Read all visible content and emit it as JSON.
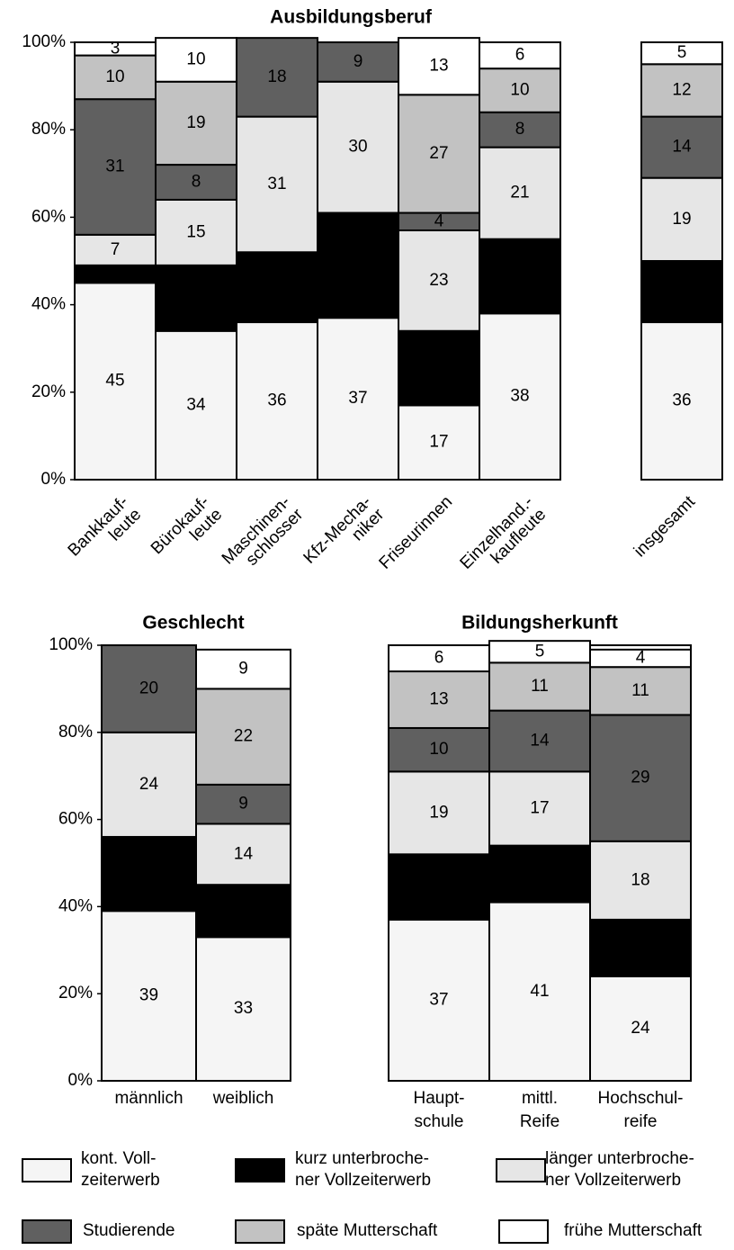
{
  "chart_data": [
    {
      "type": "bar",
      "stacked": true,
      "title": "Ausbildungsberuf",
      "categories": [
        "Bankkauf-\nleute",
        "Bürokauf-\nleute",
        "Maschinen-\nschlosser",
        "Kfz-Mecha-\nniker",
        "Friseurinnen",
        "Einzelhand.-\nkaufleute",
        "insgesamt"
      ],
      "ylim": [
        0,
        100
      ],
      "yticks": [
        {
          "value": 0,
          "label": "0%"
        },
        {
          "value": 20,
          "label": "20%"
        },
        {
          "value": 40,
          "label": "40%"
        },
        {
          "value": 60,
          "label": "60%"
        },
        {
          "value": 80,
          "label": "80%"
        },
        {
          "value": 100,
          "label": "100%"
        }
      ],
      "series": [
        {
          "name": "kont. Voll-\nzeiterwerb",
          "color": "#f5f5f5",
          "values": [
            45,
            34,
            36,
            37,
            17,
            38,
            36
          ]
        },
        {
          "name": "kurz unterbroche-\nner Vollzeiterwerb",
          "color": "#000000",
          "values": [
            4,
            15,
            16,
            24,
            17,
            17,
            14
          ]
        },
        {
          "name": "länger unterbroche-\nner Vollzeiterwerb",
          "color": "#e6e6e6",
          "values": [
            7,
            15,
            31,
            30,
            23,
            21,
            19
          ]
        },
        {
          "name": "Studierende",
          "color": "#606060",
          "values": [
            31,
            8,
            18,
            9,
            4,
            8,
            14
          ]
        },
        {
          "name": "späte Mutterschaft",
          "color": "#c2c2c2",
          "values": [
            10,
            19,
            0,
            0,
            27,
            10,
            12
          ]
        },
        {
          "name": "frühe Mutterschaft",
          "color": "#ffffff",
          "values": [
            3,
            10,
            0,
            0,
            13,
            6,
            5
          ]
        }
      ]
    },
    {
      "type": "bar",
      "stacked": true,
      "title": "Geschlecht",
      "categories": [
        "männlich",
        "weiblich"
      ],
      "ylim": [
        0,
        100
      ],
      "yticks": [
        {
          "value": 0,
          "label": "0%"
        },
        {
          "value": 20,
          "label": "20%"
        },
        {
          "value": 40,
          "label": "40%"
        },
        {
          "value": 60,
          "label": "60%"
        },
        {
          "value": 80,
          "label": "80%"
        },
        {
          "value": 100,
          "label": "100%"
        }
      ],
      "series": [
        {
          "values": [
            39,
            33
          ]
        },
        {
          "values": [
            17,
            12
          ]
        },
        {
          "values": [
            24,
            14
          ]
        },
        {
          "values": [
            20,
            9
          ]
        },
        {
          "values": [
            0,
            22
          ]
        },
        {
          "values": [
            0,
            9
          ]
        }
      ]
    },
    {
      "type": "bar",
      "stacked": true,
      "title": "Bildungsherkunft",
      "categories": [
        "Haupt-\nschule",
        "mittl.\nReife",
        "Hochschul-\nreife"
      ],
      "ylim": [
        0,
        100
      ],
      "series": [
        {
          "values": [
            37,
            41,
            24
          ]
        },
        {
          "values": [
            15,
            13,
            13
          ]
        },
        {
          "values": [
            19,
            17,
            18
          ]
        },
        {
          "values": [
            10,
            14,
            29
          ]
        },
        {
          "values": [
            13,
            11,
            11
          ]
        },
        {
          "values": [
            6,
            5,
            4
          ]
        }
      ]
    }
  ]
}
